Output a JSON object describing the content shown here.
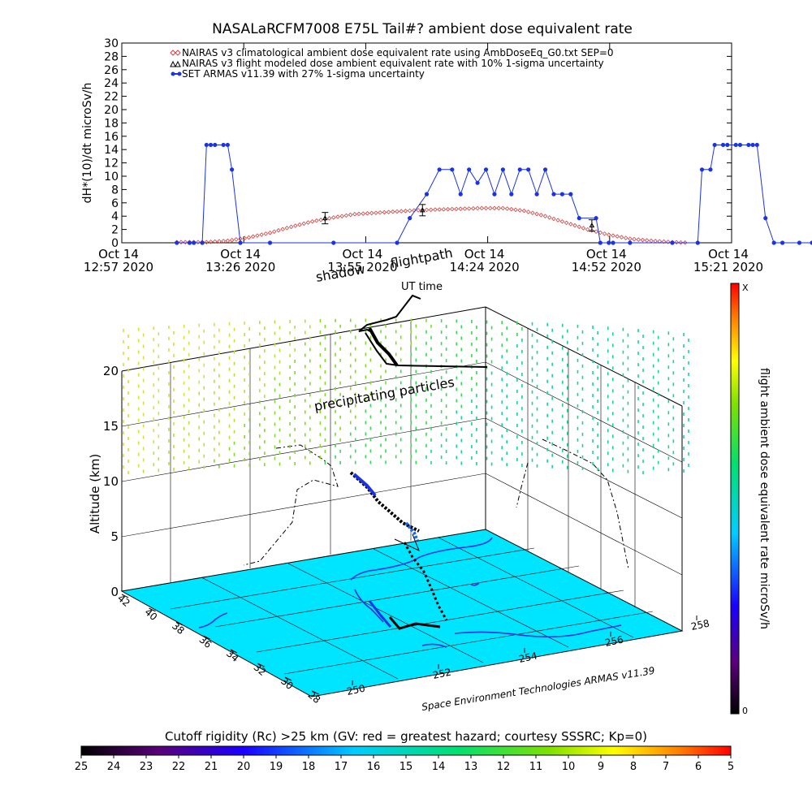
{
  "colors": {
    "armas": "#1a33e6",
    "nairas_clim": "#d04040",
    "ground": "#00e5ff",
    "coastline": "#1a33e6"
  },
  "chart_data": [
    {
      "type": "line",
      "title": "NASALaRCFM7008  E75L Tail#? ambient dose equivalent rate",
      "ylabel": "dH*(10)/dt microSv/h",
      "ylim": [
        0,
        30
      ],
      "y_ticks": [
        "0",
        "2",
        "4",
        "6",
        "8",
        "10",
        "12",
        "14",
        "16",
        "18",
        "20",
        "22",
        "24",
        "26",
        "28",
        "30"
      ],
      "x_ticks": [
        {
          "date": "Oct 14",
          "time": "12:57 2020"
        },
        {
          "date": "Oct 14",
          "time": "13:26 2020"
        },
        {
          "date": "Oct 14",
          "time": "13:55 2020"
        },
        {
          "date": "Oct 14",
          "time": "14:24 2020"
        },
        {
          "date": "Oct 14",
          "time": "14:52 2020"
        },
        {
          "date": "Oct 14",
          "time": "15:21 2020"
        }
      ],
      "xlim_minutes": [
        0,
        144
      ],
      "legend": [
        {
          "marker": "diamond",
          "label": "NAIRAS v3 climatological ambient dose equivalent rate using AmbDoseEq_G0.txt SEP=0"
        },
        {
          "marker": "triangle",
          "label": "NAIRAS v3 flight modeled dose ambient equivalent rate with 10% 1-sigma uncertainty"
        },
        {
          "marker": "filled",
          "label": "SET ARMAS v11.39 with 27% 1-sigma uncertainty"
        }
      ],
      "series": [
        {
          "key": "nairas_clim",
          "x": [
            13,
            20,
            25,
            30,
            35,
            40,
            45,
            50,
            55,
            60,
            65,
            70,
            75,
            80,
            85,
            90,
            95,
            100,
            105,
            110,
            115,
            120,
            125,
            130,
            134
          ],
          "values": [
            0.1,
            0.1,
            0.3,
            0.8,
            1.5,
            2.4,
            3.2,
            3.8,
            4.3,
            4.5,
            4.7,
            4.9,
            5.0,
            5.1,
            5.2,
            5.2,
            4.8,
            4.0,
            3.0,
            2.0,
            1.2,
            0.6,
            0.3,
            0.1,
            0.0
          ]
        },
        {
          "key": "armas",
          "x": [
            13,
            16,
            17,
            19,
            20,
            21,
            22,
            24,
            25,
            26,
            28,
            35,
            50,
            65,
            68,
            72,
            75,
            78,
            80,
            82,
            84,
            86,
            88,
            90,
            92,
            94,
            96,
            98,
            100,
            102,
            104,
            106,
            108,
            112,
            113,
            115,
            116,
            120,
            130,
            136,
            137,
            139,
            140,
            142,
            143,
            145,
            146,
            148,
            149,
            150,
            152,
            154,
            156,
            160,
            163
          ],
          "values": [
            0,
            0,
            0,
            0,
            14.7,
            14.7,
            14.7,
            14.7,
            14.7,
            11,
            0,
            0,
            0,
            0,
            3.7,
            7.3,
            11,
            11,
            7.3,
            11,
            9,
            11,
            7.3,
            11,
            7.3,
            11,
            11,
            7.3,
            11,
            7.3,
            7.3,
            7.3,
            3.7,
            3.7,
            0,
            0,
            0,
            0,
            0,
            0,
            11,
            11,
            14.7,
            14.7,
            14.7,
            14.7,
            14.7,
            14.7,
            14.7,
            14.7,
            3.7,
            0,
            0,
            0,
            0
          ]
        },
        {
          "key": "nairas_flight",
          "x": [
            48,
            71,
            111
          ],
          "values": [
            3.7,
            4.9,
            2.6
          ]
        }
      ]
    },
    {
      "type": "scatter",
      "labels": {
        "shadow": "shadow",
        "flightpath": "flightpath",
        "ut_time": "UT time",
        "particles": "precipitating particles",
        "altitude": "Altitude (km)",
        "credit": "Space Environment Technologies ARMAS v11.39"
      },
      "altitude_ticks": [
        "0",
        "5",
        "10",
        "15",
        "20"
      ],
      "lat_ticks": [
        "42",
        "40",
        "38",
        "36",
        "34",
        "32",
        "30",
        "28"
      ],
      "lon_ticks": [
        "250",
        "252",
        "254",
        "256",
        "258"
      ],
      "dose_colorbar": {
        "label": "flight ambient dose equivalent rate microSv/h",
        "top": "X",
        "bottom": "0"
      }
    }
  ],
  "cutoff_bar": {
    "title": "Cutoff rigidity (Rc) >25 km (GV: red = greatest hazard; courtesy SSSRC; Kp=0)",
    "ticks": [
      "25",
      "24",
      "23",
      "22",
      "21",
      "20",
      "19",
      "18",
      "17",
      "16",
      "15",
      "14",
      "13",
      "12",
      "11",
      "10",
      "9",
      "8",
      "7",
      "6",
      "5"
    ]
  }
}
